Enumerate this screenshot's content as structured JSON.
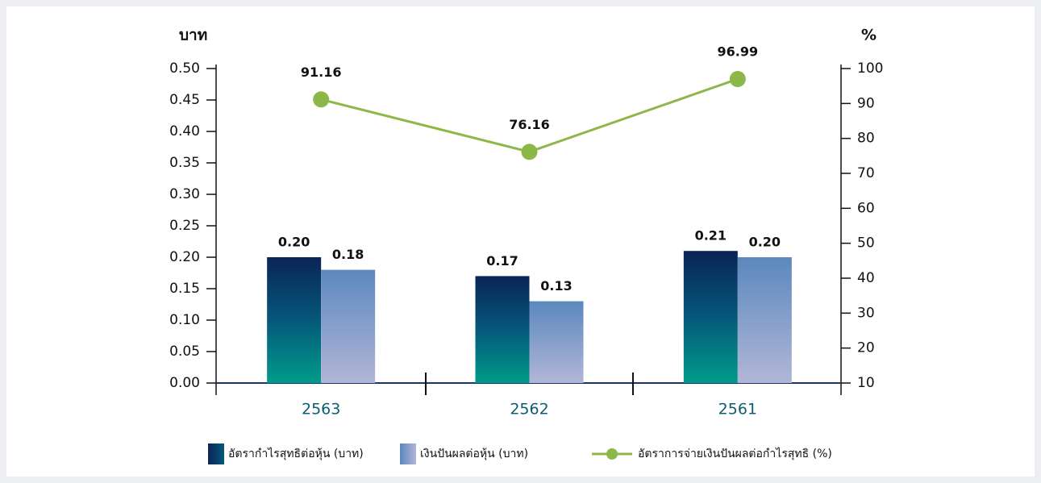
{
  "chart_data": {
    "type": "bar-line",
    "y_label": "บาท",
    "y2_label": "%",
    "categories": [
      "2563",
      "2562",
      "2561"
    ],
    "series": [
      {
        "name": "อัตรากำไรสุทธิต่อหุ้น (บาท)",
        "type": "bar",
        "color": "#0a2456",
        "values": [
          0.2,
          0.17,
          0.21
        ],
        "value_labels": [
          "0.20",
          "0.17",
          "0.21"
        ]
      },
      {
        "name": "เงินปันผลต่อหุ้น (บาท)",
        "type": "bar",
        "color": "#5b88bd",
        "values": [
          0.18,
          0.13,
          0.2
        ],
        "value_labels": [
          "0.18",
          "0.13",
          "0.20"
        ]
      },
      {
        "name": "อัตราการจ่ายเงินปันผลต่อกำไรสุทธิ (%)",
        "type": "line",
        "axis": "y2",
        "color": "#8cb84a",
        "values": [
          91.16,
          76.16,
          96.99
        ]
      }
    ],
    "ylim": [
      0,
      0.5
    ],
    "yticks": [
      {
        "value": 0,
        "label": "0.00"
      },
      {
        "value": 0.05,
        "label": "0.05"
      },
      {
        "value": 0.1,
        "label": "0.10"
      },
      {
        "value": 0.15,
        "label": "0.15"
      },
      {
        "value": 0.2,
        "label": "0.20"
      },
      {
        "value": 0.25,
        "label": "0.25"
      },
      {
        "value": 0.3,
        "label": "0.30"
      },
      {
        "value": 0.35,
        "label": "0.35"
      },
      {
        "value": 0.4,
        "label": "0.40"
      },
      {
        "value": 0.45,
        "label": "0.45"
      },
      {
        "value": 0.5,
        "label": "0.50"
      }
    ],
    "y2lim": [
      10,
      100
    ],
    "y2ticks": [
      10,
      20,
      30,
      40,
      50,
      60,
      70,
      80,
      90,
      100
    ],
    "grid": false
  }
}
